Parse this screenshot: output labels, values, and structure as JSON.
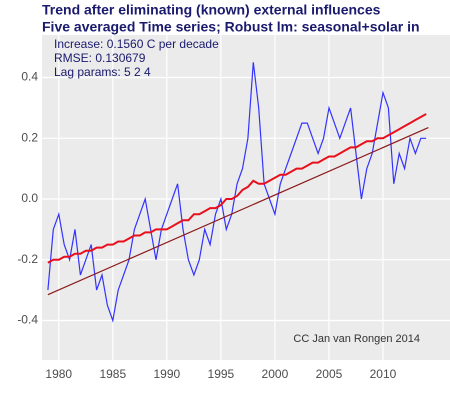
{
  "chart_data": {
    "type": "line",
    "title": "Trend after eliminating (known) external influences",
    "subtitle": "Five averaged Time series; Robust lm: seasonal+solar in",
    "annotations": [
      "Increase: 0.1560 C per decade",
      "RMSE: 0.130679",
      "Lag params: 5 2 4"
    ],
    "credit": "CC Jan van Rongen 2014",
    "x": [
      1979,
      1979.5,
      1980,
      1980.5,
      1981,
      1981.5,
      1982,
      1982.5,
      1983,
      1983.5,
      1984,
      1984.5,
      1985,
      1985.5,
      1986,
      1986.5,
      1987,
      1987.5,
      1988,
      1988.5,
      1989,
      1989.5,
      1990,
      1990.5,
      1991,
      1991.5,
      1992,
      1992.5,
      1993,
      1993.5,
      1994,
      1994.5,
      1995,
      1995.5,
      1996,
      1996.5,
      1997,
      1997.5,
      1998,
      1998.5,
      1999,
      1999.5,
      2000,
      2000.5,
      2001,
      2001.5,
      2002,
      2002.5,
      2003,
      2003.5,
      2004,
      2004.5,
      2005,
      2005.5,
      2006,
      2006.5,
      2007,
      2007.5,
      2008,
      2008.5,
      2009,
      2009.5,
      2010,
      2010.5,
      2011,
      2011.5,
      2012,
      2012.5,
      2013,
      2013.5,
      2014
    ],
    "series": [
      {
        "color": "#3333ff",
        "values": [
          -0.3,
          -0.1,
          -0.05,
          -0.15,
          -0.2,
          -0.1,
          -0.25,
          -0.2,
          -0.15,
          -0.3,
          -0.25,
          -0.35,
          -0.4,
          -0.3,
          -0.25,
          -0.2,
          -0.1,
          -0.05,
          0.0,
          -0.1,
          -0.2,
          -0.1,
          -0.05,
          0.0,
          0.05,
          -0.1,
          -0.2,
          -0.25,
          -0.2,
          -0.1,
          -0.15,
          -0.05,
          0.0,
          -0.1,
          -0.05,
          0.05,
          0.1,
          0.2,
          0.45,
          0.3,
          0.05,
          0.0,
          -0.05,
          0.05,
          0.1,
          0.15,
          0.2,
          0.25,
          0.25,
          0.2,
          0.15,
          0.2,
          0.3,
          0.25,
          0.2,
          0.25,
          0.3,
          0.15,
          0.0,
          0.1,
          0.15,
          0.25,
          0.35,
          0.3,
          0.05,
          0.15,
          0.1,
          0.2,
          0.15,
          0.2,
          0.2
        ]
      },
      {
        "color": "#e8101c",
        "values": [
          -0.21,
          -0.2,
          -0.2,
          -0.19,
          -0.19,
          -0.18,
          -0.18,
          -0.17,
          -0.17,
          -0.16,
          -0.16,
          -0.15,
          -0.15,
          -0.14,
          -0.14,
          -0.13,
          -0.12,
          -0.12,
          -0.11,
          -0.11,
          -0.1,
          -0.1,
          -0.1,
          -0.09,
          -0.08,
          -0.07,
          -0.07,
          -0.05,
          -0.05,
          -0.04,
          -0.03,
          -0.03,
          -0.02,
          0.0,
          0.0,
          0.01,
          0.03,
          0.04,
          0.06,
          0.05,
          0.05,
          0.06,
          0.07,
          0.08,
          0.08,
          0.09,
          0.1,
          0.1,
          0.11,
          0.12,
          0.12,
          0.13,
          0.14,
          0.14,
          0.15,
          0.16,
          0.17,
          0.17,
          0.18,
          0.19,
          0.19,
          0.2,
          0.2,
          0.21,
          0.22,
          0.23,
          0.24,
          0.25,
          0.26,
          0.27,
          0.28
        ]
      },
      {
        "color": "#8b1a1a",
        "x": [
          1979,
          2014.2
        ],
        "values": [
          -0.315,
          0.235
        ]
      }
    ],
    "xlim": [
      1978.45,
      2016.2
    ],
    "ylim": [
      -0.53,
      0.54
    ],
    "xticks": [
      1980,
      1985,
      1990,
      1995,
      2000,
      2005,
      2010
    ],
    "yticks": [
      -0.4,
      -0.2,
      {
        "value": 0,
        "label": "0.0"
      },
      0.2,
      0.4
    ],
    "grid": true
  }
}
